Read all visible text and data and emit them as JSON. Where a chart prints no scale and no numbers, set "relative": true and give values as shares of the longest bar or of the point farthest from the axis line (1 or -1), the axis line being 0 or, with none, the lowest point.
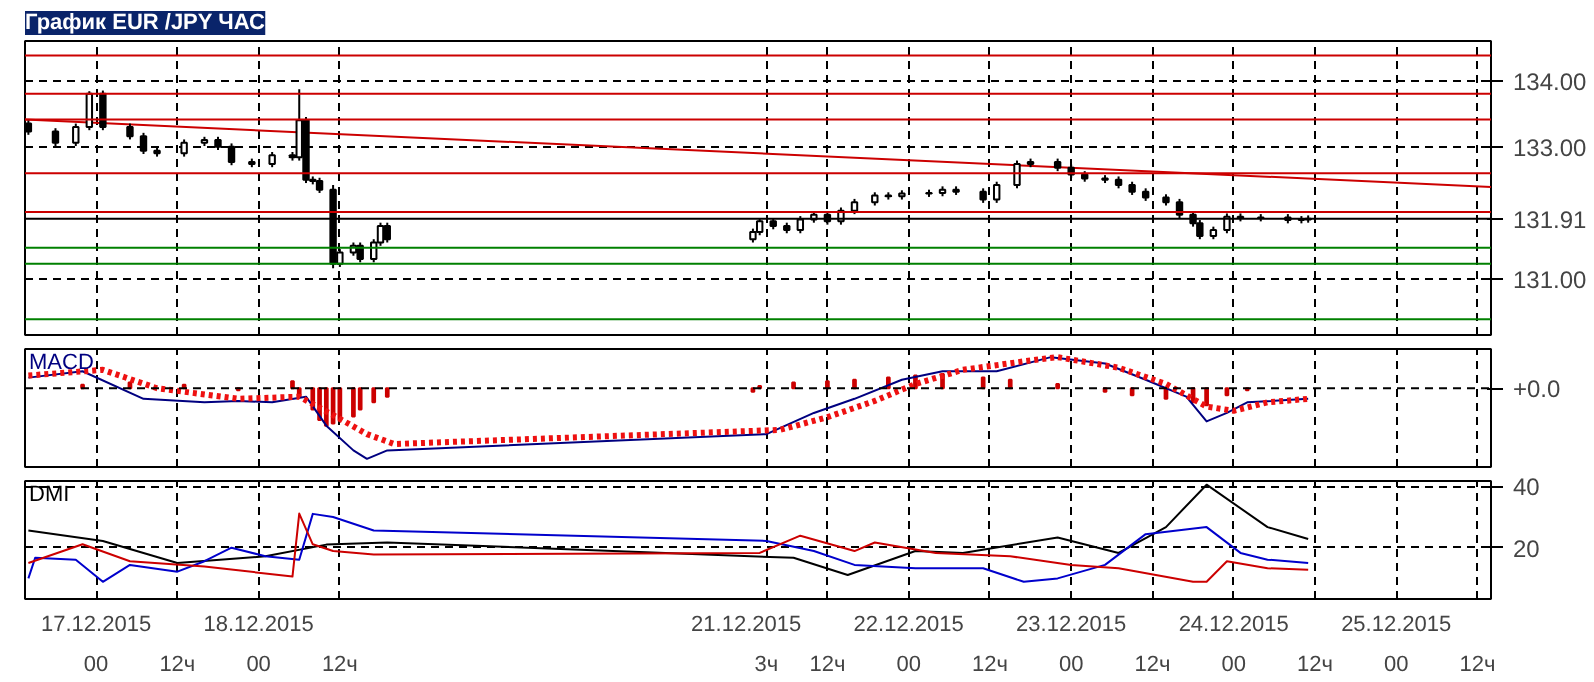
{
  "chart_data": [
    {
      "type": "candlestick",
      "title": "График EUR /JPY ЧАС",
      "x": [
        "2015-12-16T14:00",
        "2015-12-16T18:00",
        "2015-12-16T21:00",
        "2015-12-16T23:00",
        "2015-12-17T01:00",
        "2015-12-17T05:00",
        "2015-12-17T07:00",
        "2015-12-17T09:00",
        "2015-12-17T13:00",
        "2015-12-17T16:00",
        "2015-12-17T18:00",
        "2015-12-17T20:00",
        "2015-12-17T23:00",
        "2015-12-18T02:00",
        "2015-12-18T05:00",
        "2015-12-18T06:00",
        "2015-12-18T07:00",
        "2015-12-18T08:00",
        "2015-12-18T09:00",
        "2015-12-18T11:00",
        "2015-12-18T12:00",
        "2015-12-18T14:00",
        "2015-12-18T15:00",
        "2015-12-18T17:00",
        "2015-12-18T18:00",
        "2015-12-18T19:00",
        "2015-12-21T01:00",
        "2015-12-21T02:00",
        "2015-12-21T04:00",
        "2015-12-21T06:00",
        "2015-12-21T08:00",
        "2015-12-21T10:00",
        "2015-12-21T12:00",
        "2015-12-21T14:00",
        "2015-12-21T16:00",
        "2015-12-21T19:00",
        "2015-12-21T21:00",
        "2015-12-21T23:00",
        "2015-12-22T03:00",
        "2015-12-22T05:00",
        "2015-12-22T07:00",
        "2015-12-22T11:00",
        "2015-12-22T13:00",
        "2015-12-22T16:00",
        "2015-12-22T18:00",
        "2015-12-22T22:00",
        "2015-12-23T00:00",
        "2015-12-23T02:00",
        "2015-12-23T05:00",
        "2015-12-23T07:00",
        "2015-12-23T09:00",
        "2015-12-23T11:00",
        "2015-12-23T14:00",
        "2015-12-23T16:00",
        "2015-12-23T18:00",
        "2015-12-23T19:00",
        "2015-12-23T21:00",
        "2015-12-23T23:00",
        "2015-12-24T01:00",
        "2015-12-24T04:00",
        "2015-12-24T08:00",
        "2015-12-24T10:00",
        "2015-12-24T11:00"
      ],
      "ohlc": [
        [
          133.35,
          133.4,
          133.18,
          133.23
        ],
        [
          133.23,
          133.28,
          133.01,
          133.06
        ],
        [
          133.06,
          133.35,
          133.01,
          133.3
        ],
        [
          133.3,
          133.84,
          133.25,
          133.8
        ],
        [
          133.8,
          133.85,
          133.25,
          133.3
        ],
        [
          133.3,
          133.35,
          133.11,
          133.16
        ],
        [
          133.16,
          133.21,
          132.89,
          132.94
        ],
        [
          132.94,
          132.99,
          132.85,
          132.9
        ],
        [
          132.9,
          133.11,
          132.85,
          133.06
        ],
        [
          133.06,
          133.15,
          133.01,
          133.1
        ],
        [
          133.1,
          133.15,
          132.95,
          133.0
        ],
        [
          133.0,
          133.05,
          132.72,
          132.77
        ],
        [
          132.77,
          132.82,
          132.69,
          132.74
        ],
        [
          132.74,
          132.92,
          132.69,
          132.87
        ],
        [
          132.87,
          132.92,
          132.79,
          132.84
        ],
        [
          132.84,
          133.87,
          132.79,
          133.4
        ],
        [
          133.4,
          133.45,
          132.45,
          132.5
        ],
        [
          132.5,
          132.55,
          132.43,
          132.48
        ],
        [
          132.48,
          132.53,
          132.3,
          132.35
        ],
        [
          132.35,
          132.42,
          131.16,
          131.23
        ],
        [
          131.23,
          131.45,
          131.18,
          131.4
        ],
        [
          131.4,
          131.55,
          131.35,
          131.5
        ],
        [
          131.5,
          131.55,
          131.25,
          131.3
        ],
        [
          131.3,
          131.6,
          131.25,
          131.55
        ],
        [
          131.55,
          131.85,
          131.5,
          131.8
        ],
        [
          131.8,
          131.85,
          131.55,
          131.6
        ],
        [
          131.6,
          131.76,
          131.55,
          131.71
        ],
        [
          131.71,
          131.92,
          131.66,
          131.87
        ],
        [
          131.87,
          131.92,
          131.75,
          131.8
        ],
        [
          131.8,
          131.85,
          131.69,
          131.74
        ],
        [
          131.74,
          131.95,
          131.69,
          131.9
        ],
        [
          131.9,
          132.02,
          131.85,
          131.97
        ],
        [
          131.97,
          132.02,
          131.82,
          131.87
        ],
        [
          131.87,
          132.08,
          131.82,
          132.03
        ],
        [
          132.03,
          132.21,
          131.98,
          132.16
        ],
        [
          132.16,
          132.31,
          132.11,
          132.26
        ],
        [
          132.26,
          132.31,
          132.2,
          132.25
        ],
        [
          132.25,
          132.34,
          132.2,
          132.29
        ],
        [
          132.29,
          132.35,
          132.24,
          132.3
        ],
        [
          132.3,
          132.4,
          132.25,
          132.35
        ],
        [
          132.35,
          132.4,
          132.27,
          132.32
        ],
        [
          132.32,
          132.37,
          132.15,
          132.2
        ],
        [
          132.2,
          132.47,
          132.15,
          132.42
        ],
        [
          132.42,
          132.79,
          132.37,
          132.74
        ],
        [
          132.74,
          132.82,
          132.69,
          132.77
        ],
        [
          132.77,
          132.82,
          132.63,
          132.68
        ],
        [
          132.68,
          132.73,
          132.53,
          132.58
        ],
        [
          132.58,
          132.63,
          132.47,
          132.52
        ],
        [
          132.52,
          132.57,
          132.45,
          132.5
        ],
        [
          132.5,
          132.55,
          132.37,
          132.42
        ],
        [
          132.42,
          132.47,
          132.27,
          132.32
        ],
        [
          132.32,
          132.37,
          132.18,
          132.23
        ],
        [
          132.23,
          132.28,
          132.11,
          132.16
        ],
        [
          132.16,
          132.21,
          131.92,
          131.97
        ],
        [
          131.97,
          132.02,
          131.79,
          131.84
        ],
        [
          131.84,
          131.89,
          131.6,
          131.65
        ],
        [
          131.65,
          131.79,
          131.6,
          131.74
        ],
        [
          131.74,
          131.99,
          131.69,
          131.94
        ],
        [
          131.94,
          131.99,
          131.87,
          131.92
        ],
        [
          131.92,
          131.98,
          131.87,
          131.93
        ],
        [
          131.93,
          131.98,
          131.84,
          131.89
        ],
        [
          131.89,
          131.95,
          131.84,
          131.9
        ],
        [
          131.9,
          131.96,
          131.85,
          131.91
        ]
      ],
      "series": [
        {
          "type": "line",
          "color": "#cc0000",
          "x": [
            "2015-12-16T13:30",
            "2015-12-25T14:00"
          ],
          "values": [
            133.41,
            132.39
          ]
        }
      ],
      "ref_lines": [
        {
          "axis": "y",
          "value": 134.38,
          "color": "#cc0000"
        },
        {
          "axis": "y",
          "value": 133.8,
          "color": "#cc0000"
        },
        {
          "axis": "y",
          "value": 133.41,
          "color": "#cc0000"
        },
        {
          "axis": "y",
          "value": 132.6,
          "color": "#cc0000"
        },
        {
          "axis": "y",
          "value": 132.01,
          "color": "#cc0000"
        },
        {
          "axis": "y",
          "value": 131.91,
          "label": "131.91",
          "color": "#000000"
        },
        {
          "axis": "y",
          "value": 131.47,
          "color": "#008000"
        },
        {
          "axis": "y",
          "value": 131.23,
          "color": "#008000"
        },
        {
          "axis": "y",
          "value": 130.39,
          "color": "#008000"
        }
      ],
      "xlim": [
        "2015-12-16T13:30",
        "2015-12-25T14:00"
      ],
      "xticks": [
        {
          "value": "2015-12-17T00:00",
          "label": null
        },
        {
          "value": "2015-12-17T12:00",
          "label": null
        },
        {
          "value": "2015-12-18T00:00",
          "label": null
        },
        {
          "value": "2015-12-18T12:00",
          "label": null
        },
        {
          "value": "2015-12-21T03:00",
          "label": null
        },
        {
          "value": "2015-12-21T12:00",
          "label": null
        },
        {
          "value": "2015-12-22T00:00",
          "label": null
        },
        {
          "value": "2015-12-22T12:00",
          "label": null
        },
        {
          "value": "2015-12-23T00:00",
          "label": null
        },
        {
          "value": "2015-12-23T12:00",
          "label": null
        },
        {
          "value": "2015-12-24T00:00",
          "label": null
        },
        {
          "value": "2015-12-24T12:00",
          "label": null
        },
        {
          "value": "2015-12-25T00:00",
          "label": null
        },
        {
          "value": "2015-12-25T12:00",
          "label": null
        }
      ],
      "ylim": [
        130.15,
        134.6
      ],
      "yticks": [
        {
          "value": 131,
          "label": "131.00"
        },
        {
          "value": 133,
          "label": "133.00"
        },
        {
          "value": 134,
          "label": "134.00"
        }
      ],
      "grid": true,
      "tick_labels": "y"
    },
    {
      "type": "line",
      "title": "MACD",
      "relative": true,
      "series": [
        {
          "type": "bar",
          "color": "#cc0000",
          "x": [
            "2015-12-16T22:00",
            "2015-12-17T05:00",
            "2015-12-17T13:00",
            "2015-12-17T21:00",
            "2015-12-18T05:00",
            "2015-12-18T06:00",
            "2015-12-18T08:00",
            "2015-12-18T09:00",
            "2015-12-18T10:00",
            "2015-12-18T11:00",
            "2015-12-18T12:00",
            "2015-12-18T14:00",
            "2015-12-18T15:00",
            "2015-12-18T17:00",
            "2015-12-18T19:00",
            "2015-12-21T01:00",
            "2015-12-21T02:00",
            "2015-12-21T07:00",
            "2015-12-21T12:00",
            "2015-12-21T16:00",
            "2015-12-21T21:00",
            "2015-12-22T01:00",
            "2015-12-22T05:00",
            "2015-12-22T11:00",
            "2015-12-22T15:00",
            "2015-12-22T22:00",
            "2015-12-23T05:00",
            "2015-12-23T09:00",
            "2015-12-23T14:00",
            "2015-12-23T18:00",
            "2015-12-23T20:00",
            "2015-12-23T23:00",
            "2015-12-24T02:00"
          ],
          "values": [
            0.05,
            0.08,
            0.05,
            -0.03,
            0.1,
            -0.12,
            -0.3,
            -0.45,
            -0.53,
            -0.5,
            -0.45,
            -0.4,
            -0.3,
            -0.2,
            -0.12,
            -0.05,
            0.03,
            0.08,
            0.1,
            0.12,
            0.15,
            0.18,
            0.2,
            0.15,
            0.12,
            0.06,
            -0.05,
            -0.1,
            -0.15,
            -0.2,
            -0.24,
            -0.1,
            -0.03
          ]
        },
        {
          "type": "line",
          "color": "#000080",
          "x": [
            "2015-12-16T14:00",
            "2015-12-16T22:00",
            "2015-12-17T07:00",
            "2015-12-17T16:00",
            "2015-12-17T21:00",
            "2015-12-18T02:00",
            "2015-12-18T07:00",
            "2015-12-18T10:00",
            "2015-12-18T14:00",
            "2015-12-18T16:00",
            "2015-12-18T19:00",
            "2015-12-21T03:00",
            "2015-12-21T10:00",
            "2015-12-21T16:00",
            "2015-12-21T23:00",
            "2015-12-22T05:00",
            "2015-12-22T13:00",
            "2015-12-22T21:00",
            "2015-12-23T05:00",
            "2015-12-23T11:00",
            "2015-12-23T17:00",
            "2015-12-23T20:00",
            "2015-12-23T23:00",
            "2015-12-24T02:00",
            "2015-12-24T11:00"
          ],
          "values": [
            0.15,
            0.24,
            -0.15,
            -0.2,
            -0.18,
            -0.2,
            -0.12,
            -0.53,
            -0.88,
            -1,
            -0.88,
            -0.65,
            -0.35,
            -0.15,
            0.12,
            0.24,
            0.24,
            0.44,
            0.35,
            0.12,
            -0.12,
            -0.47,
            -0.35,
            -0.2,
            -0.15
          ]
        },
        {
          "type": "line",
          "color": "#ee1111",
          "line_style": "dotted",
          "x": [
            "2015-12-16T14:00",
            "2015-12-17T01:00",
            "2015-12-17T09:00",
            "2015-12-17T21:00",
            "2015-12-18T06:00",
            "2015-12-18T11:00",
            "2015-12-18T16:00",
            "2015-12-18T20:00",
            "2015-12-21T05:00",
            "2015-12-21T12:00",
            "2015-12-21T19:00",
            "2015-12-22T01:00",
            "2015-12-22T08:00",
            "2015-12-22T17:00",
            "2015-12-22T22:00",
            "2015-12-23T07:00",
            "2015-12-23T14:00",
            "2015-12-23T20:00",
            "2015-12-24T00:00",
            "2015-12-24T05:00",
            "2015-12-24T11:00"
          ],
          "values": [
            0.18,
            0.26,
            0,
            -0.15,
            -0.12,
            -0.38,
            -0.65,
            -0.79,
            -0.59,
            -0.41,
            -0.18,
            0.06,
            0.26,
            0.38,
            0.44,
            0.29,
            0.06,
            -0.26,
            -0.32,
            -0.2,
            -0.15
          ]
        }
      ],
      "ref_lines": [
        {
          "axis": "y",
          "value": 0,
          "label": "+0.0",
          "color": "#000000",
          "line_style": "dashed"
        }
      ],
      "xlim": [
        "2015-12-16T13:30",
        "2015-12-25T14:00"
      ],
      "xticks": [
        {
          "value": "2015-12-17T00:00",
          "label": null
        },
        {
          "value": "2015-12-17T12:00",
          "label": null
        },
        {
          "value": "2015-12-18T00:00",
          "label": null
        },
        {
          "value": "2015-12-18T12:00",
          "label": null
        },
        {
          "value": "2015-12-21T03:00",
          "label": null
        },
        {
          "value": "2015-12-21T12:00",
          "label": null
        },
        {
          "value": "2015-12-22T00:00",
          "label": null
        },
        {
          "value": "2015-12-22T12:00",
          "label": null
        },
        {
          "value": "2015-12-23T00:00",
          "label": null
        },
        {
          "value": "2015-12-23T12:00",
          "label": null
        },
        {
          "value": "2015-12-24T00:00",
          "label": null
        },
        {
          "value": "2015-12-24T12:00",
          "label": null
        },
        {
          "value": "2015-12-25T00:00",
          "label": null
        },
        {
          "value": "2015-12-25T12:00",
          "label": null
        }
      ],
      "grid": "x",
      "tick_labels": false
    },
    {
      "type": "line",
      "title": "DMI",
      "series": [
        {
          "color": "#000000",
          "x": [
            "2015-12-16T14:00",
            "2015-12-17T01:00",
            "2015-12-17T12:00",
            "2015-12-18T01:00",
            "2015-12-18T10:00",
            "2015-12-18T19:00",
            "2015-12-21T07:00",
            "2015-12-21T15:00",
            "2015-12-22T01:00",
            "2015-12-22T08:00",
            "2015-12-22T22:00",
            "2015-12-23T07:00",
            "2015-12-23T14:00",
            "2015-12-23T20:00",
            "2015-12-24T05:00",
            "2015-12-24T11:00"
          ],
          "values": [
            25.6,
            22.2,
            15,
            17.2,
            21,
            21.7,
            16.7,
            11.1,
            18.9,
            18.3,
            23.3,
            18.3,
            26.7,
            40.5,
            26.7,
            22.8
          ]
        },
        {
          "color": "#0000cc",
          "x": [
            "2015-12-16T14:00",
            "2015-12-16T15:00",
            "2015-12-16T21:00",
            "2015-12-17T01:00",
            "2015-12-17T05:00",
            "2015-12-17T12:00",
            "2015-12-17T16:00",
            "2015-12-17T20:00",
            "2015-12-18T01:00",
            "2015-12-18T06:00",
            "2015-12-18T08:00",
            "2015-12-18T11:00",
            "2015-12-18T17:00",
            "2015-12-21T03:00",
            "2015-12-21T10:00",
            "2015-12-21T16:00",
            "2015-12-22T01:00",
            "2015-12-22T11:00",
            "2015-12-22T17:00",
            "2015-12-22T22:00",
            "2015-12-23T05:00",
            "2015-12-23T11:00",
            "2015-12-23T20:00",
            "2015-12-24T01:00",
            "2015-12-24T05:00",
            "2015-12-24T11:00"
          ],
          "values": [
            10,
            16.7,
            16.1,
            8.9,
            14.4,
            12.2,
            15.6,
            20,
            17.2,
            16.1,
            31,
            30,
            25.6,
            22.2,
            18.9,
            14.4,
            13.3,
            13.3,
            8.9,
            10,
            14.4,
            24.4,
            26.7,
            18.3,
            16.1,
            15
          ]
        },
        {
          "color": "#cc0000",
          "x": [
            "2015-12-16T14:00",
            "2015-12-16T22:00",
            "2015-12-17T05:00",
            "2015-12-17T16:00",
            "2015-12-18T05:00",
            "2015-12-18T06:00",
            "2015-12-18T08:00",
            "2015-12-18T11:00",
            "2015-12-18T17:00",
            "2015-12-21T02:00",
            "2015-12-21T08:00",
            "2015-12-21T16:00",
            "2015-12-21T19:00",
            "2015-12-22T04:00",
            "2015-12-22T15:00",
            "2015-12-23T00:00",
            "2015-12-23T07:00",
            "2015-12-23T18:00",
            "2015-12-23T20:00",
            "2015-12-23T23:00",
            "2015-12-24T05:00",
            "2015-12-24T11:00"
          ],
          "values": [
            15,
            21.1,
            15.6,
            13.9,
            10.6,
            31.1,
            21.1,
            18.9,
            17.8,
            18.3,
            23.9,
            18.9,
            21.7,
            18.3,
            17.2,
            14.4,
            13.3,
            8.9,
            8.9,
            15.6,
            13.3,
            12.8
          ]
        }
      ],
      "x2lim": [
        "2015-12-16T13:30",
        "2015-12-25T14:00"
      ],
      "x2ticks": [
        {
          "value": "2015-12-17",
          "label": "17.12.2015"
        },
        {
          "value": "2015-12-18",
          "label": "18.12.2015"
        },
        {
          "value": "2015-12-21",
          "label": "21.12.2015"
        },
        {
          "value": "2015-12-22",
          "label": "22.12.2015"
        },
        {
          "value": "2015-12-23",
          "label": "23.12.2015"
        },
        {
          "value": "2015-12-24",
          "label": "24.12.2015"
        },
        {
          "value": "2015-12-25",
          "label": "25.12.2015"
        }
      ],
      "xlim": [
        "2015-12-16T13:30",
        "2015-12-25T14:00"
      ],
      "xticks": [
        {
          "value": "2015-12-17T00:00",
          "label": "00"
        },
        {
          "value": "2015-12-17T12:00",
          "label": "12ч"
        },
        {
          "value": "2015-12-18T00:00",
          "label": "00"
        },
        {
          "value": "2015-12-18T12:00",
          "label": "12ч"
        },
        {
          "value": "2015-12-21T03:00",
          "label": "3ч"
        },
        {
          "value": "2015-12-21T12:00",
          "label": "12ч"
        },
        {
          "value": "2015-12-22T00:00",
          "label": "00"
        },
        {
          "value": "2015-12-22T12:00",
          "label": "12ч"
        },
        {
          "value": "2015-12-23T00:00",
          "label": "00"
        },
        {
          "value": "2015-12-23T12:00",
          "label": "12ч"
        },
        {
          "value": "2015-12-24T00:00",
          "label": "00"
        },
        {
          "value": "2015-12-24T12:00",
          "label": "12ч"
        },
        {
          "value": "2015-12-25T00:00",
          "label": "00"
        },
        {
          "value": "2015-12-25T12:00",
          "label": "12ч"
        }
      ],
      "ylim": [
        3.3,
        41.7
      ],
      "yticks": [
        20,
        40
      ],
      "grid": true
    }
  ]
}
